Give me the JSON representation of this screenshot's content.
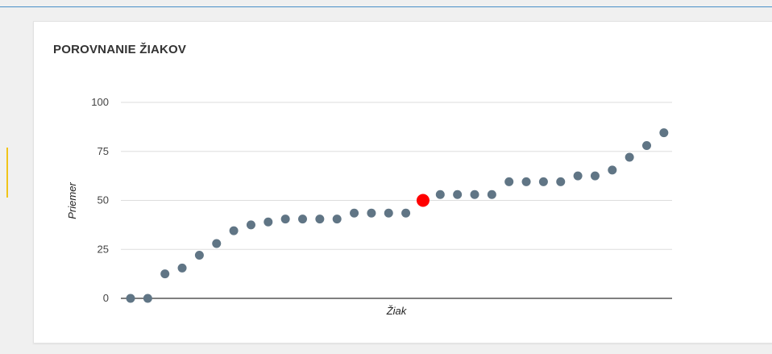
{
  "card": {
    "title": "POROVNANIE ŽIAKOV"
  },
  "colors": {
    "point": "#607585",
    "highlight": "#ff0000",
    "grid": "#dddddd",
    "baseline": "#333333"
  },
  "chart_data": {
    "type": "scatter",
    "title": "POROVNANIE ŽIAKOV",
    "xlabel": "Žiak",
    "ylabel": "Priemer",
    "ylim": [
      0,
      100
    ],
    "yticks": [
      0,
      25,
      50,
      75,
      100
    ],
    "grid": true,
    "legend": "none",
    "series": [
      {
        "values": [
          0,
          0,
          12.5,
          15.5,
          22,
          28,
          34.5,
          37.5,
          39,
          40.5,
          40.5,
          40.5,
          40.5,
          43.5,
          43.5,
          43.5,
          43.5,
          50,
          53,
          53,
          53,
          53,
          59.5,
          59.5,
          59.5,
          59.5,
          62.5,
          62.5,
          65.5,
          72,
          78,
          84.5
        ]
      }
    ],
    "highlight_index": 17
  }
}
